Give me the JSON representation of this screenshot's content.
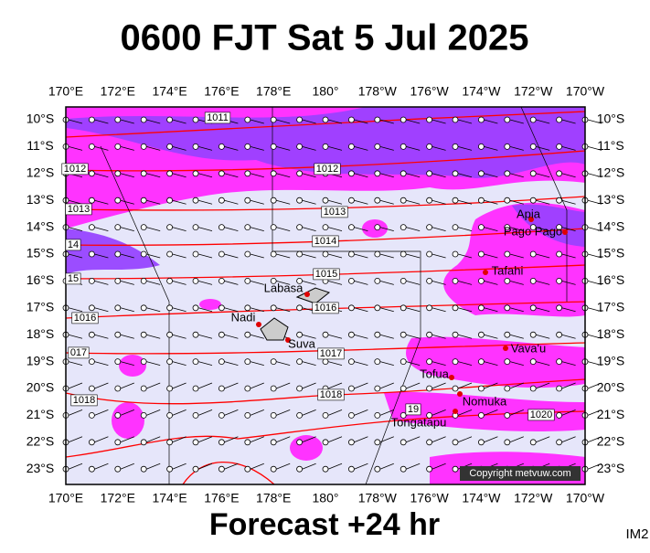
{
  "header": {
    "title": "0600 FJT Sat 5 Jul 2025"
  },
  "footer": {
    "forecast": "Forecast +24 hr",
    "code": "IM2"
  },
  "map": {
    "lon_labels": [
      "170°E",
      "172°E",
      "174°E",
      "176°E",
      "178°E",
      "180°",
      "178°W",
      "176°W",
      "174°W",
      "172°W",
      "170°W"
    ],
    "lat_labels": [
      "10°S",
      "11°S",
      "12°S",
      "13°S",
      "14°S",
      "15°S",
      "16°S",
      "17°S",
      "18°S",
      "19°S",
      "20°S",
      "21°S",
      "22°S",
      "23°S"
    ],
    "isobar_labels": [
      "1011",
      "1012",
      "1012",
      "1013",
      "1013",
      "14",
      "1014",
      "15",
      "1015",
      "1016",
      "1016",
      "017",
      "1017",
      "1018",
      "1018",
      "19",
      "1020"
    ],
    "places": [
      "Apia",
      "Pago Pago",
      "Tafahi",
      "Labasa",
      "Nadi",
      "Suva",
      "Vava'u",
      "Tofua",
      "Nomuka",
      "Tongatapu"
    ],
    "copyright": "Copyright metvuw.com"
  }
}
